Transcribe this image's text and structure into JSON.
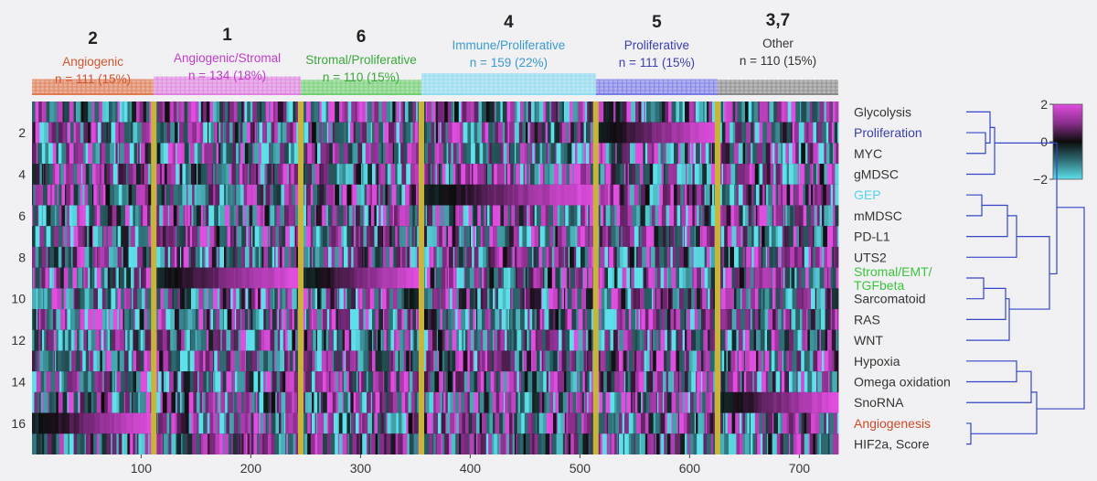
{
  "chart_data": {
    "type": "heatmap",
    "x_ticks": [
      100,
      200,
      300,
      400,
      500,
      600,
      700
    ],
    "x_range": [
      1,
      735
    ],
    "y_ticks": [
      2,
      4,
      6,
      8,
      10,
      12,
      14,
      16
    ],
    "y_range": [
      0.5,
      17.5
    ],
    "rows": [
      "Glycolysis",
      "Proliferation",
      "MYC",
      "gMDSC",
      "GEP",
      "mMDSC",
      "PD-L1",
      "UTS2",
      "Stromal/EMT/\nTGFbeta",
      "Sarcomatoid",
      "RAS",
      "WNT",
      "Hypoxia",
      "Omega oxidation",
      "SnoRNA",
      "Angiogenesis",
      "HIF2a, Score"
    ],
    "row_label_colors": [
      "#333333",
      "#3a3fb0",
      "#333333",
      "#333333",
      "#52d5ea",
      "#333333",
      "#333333",
      "#333333",
      "#3cc43c",
      "#333333",
      "#333333",
      "#333333",
      "#333333",
      "#333333",
      "#333333",
      "#d04a2a",
      "#333333"
    ],
    "clusters": [
      {
        "id": "2",
        "name": "Angiogenic",
        "n_label": "n = 111 (15%)",
        "start": 1,
        "end": 111,
        "color": "#e07a50",
        "text_color": "#d0552f",
        "high_row": 16
      },
      {
        "id": "1",
        "name": "Angiogenic/Stromal",
        "n_label": "n = 134 (18%)",
        "start": 112,
        "end": 245,
        "color": "#e080e0",
        "text_color": "#c03cc8",
        "high_row": 9
      },
      {
        "id": "6",
        "name": "Stromal/Proliferative",
        "n_label": "n = 110 (15%)",
        "start": 246,
        "end": 355,
        "color": "#70d070",
        "text_color": "#3aa83a",
        "high_row": 9
      },
      {
        "id": "4",
        "name": "Immune/Proliferative",
        "n_label": "n = 159 (22%)",
        "start": 356,
        "end": 514,
        "color": "#8edcf0",
        "text_color": "#3a9ad0",
        "high_row": 5
      },
      {
        "id": "5",
        "name": "Proliferative",
        "n_label": "n = 111 (15%)",
        "start": 515,
        "end": 625,
        "color": "#7a7ae8",
        "text_color": "#3a3fb0",
        "high_row": 2
      },
      {
        "id": "3,7",
        "name": "Other",
        "n_label": "n = 110 (15%)",
        "start": 626,
        "end": 735,
        "color": "#8a8a8a",
        "text_color": "#333333",
        "high_row": 15
      }
    ],
    "colorbar": {
      "min": -2,
      "max": 2,
      "ticks": [
        "2",
        "0",
        "−2"
      ],
      "colors": [
        "#5de0ea",
        "#2f6e76",
        "#0c0c0c",
        "#8a2e8c",
        "#e04ee0"
      ]
    },
    "dendrogram_color": "#3346c8"
  }
}
